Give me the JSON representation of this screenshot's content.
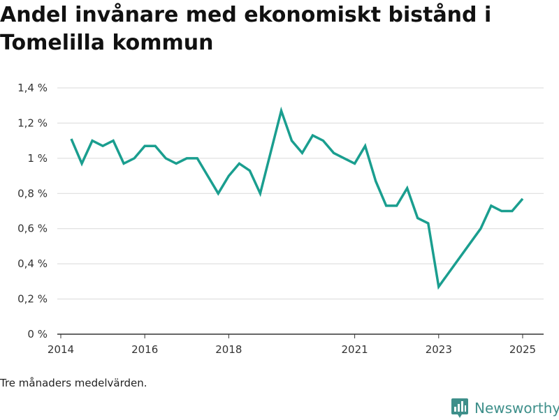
{
  "title": "Andel invånare med ekonomiskt bistånd i Tomelilla kommun",
  "note": "Tre månaders medelvärden.",
  "brand": {
    "name": "Newsworthy",
    "icon": "bar-chart-logo-icon",
    "color": "#3e8f8a"
  },
  "chart_data": {
    "type": "line",
    "title": "Andel invånare med ekonomiskt bistånd i Tomelilla kommun",
    "xlabel": "",
    "ylabel": "",
    "ylim": [
      0,
      1.4
    ],
    "yticks": [
      0,
      0.2,
      0.4,
      0.6,
      0.8,
      1.0,
      1.2,
      1.4
    ],
    "ytick_labels": [
      "0 %",
      "0,2 %",
      "0,4 %",
      "0,6 %",
      "0,8 %",
      "1 %",
      "1,2 %",
      "1,4 %"
    ],
    "xlim": [
      "2013-12",
      "2025-07"
    ],
    "xticks": [
      "2014-01",
      "2016-01",
      "2018-01",
      "2021-01",
      "2023-01",
      "2025-01"
    ],
    "xtick_labels": [
      "2014",
      "2016",
      "2018",
      "2021",
      "2023",
      "2025"
    ],
    "grid": true,
    "line_color": "#1a9e8f",
    "series": [
      {
        "x": [
          "2014-04",
          "2014-07",
          "2014-10",
          "2015-01",
          "2015-04",
          "2015-07",
          "2015-10",
          "2016-01",
          "2016-04",
          "2016-07",
          "2016-10",
          "2017-01",
          "2017-04",
          "2017-07",
          "2017-10",
          "2018-01",
          "2018-04",
          "2018-07",
          "2018-10",
          "2019-04",
          "2019-07",
          "2019-10",
          "2020-01",
          "2020-04",
          "2020-07",
          "2020-10",
          "2021-01",
          "2021-04",
          "2021-07",
          "2021-10",
          "2022-01",
          "2022-04",
          "2022-07",
          "2022-10",
          "2023-01",
          "2024-01",
          "2024-04",
          "2024-07",
          "2024-10",
          "2025-01"
        ],
        "y": [
          1.11,
          0.97,
          1.1,
          1.07,
          1.1,
          0.97,
          1.0,
          1.07,
          1.07,
          1.0,
          0.97,
          1.0,
          1.0,
          0.9,
          0.8,
          0.9,
          0.97,
          0.93,
          0.8,
          1.27,
          1.1,
          1.03,
          1.13,
          1.1,
          1.03,
          1.0,
          0.97,
          1.07,
          0.87,
          0.73,
          0.73,
          0.83,
          0.66,
          0.63,
          0.27,
          0.6,
          0.73,
          0.7,
          0.7,
          0.77
        ]
      }
    ]
  }
}
